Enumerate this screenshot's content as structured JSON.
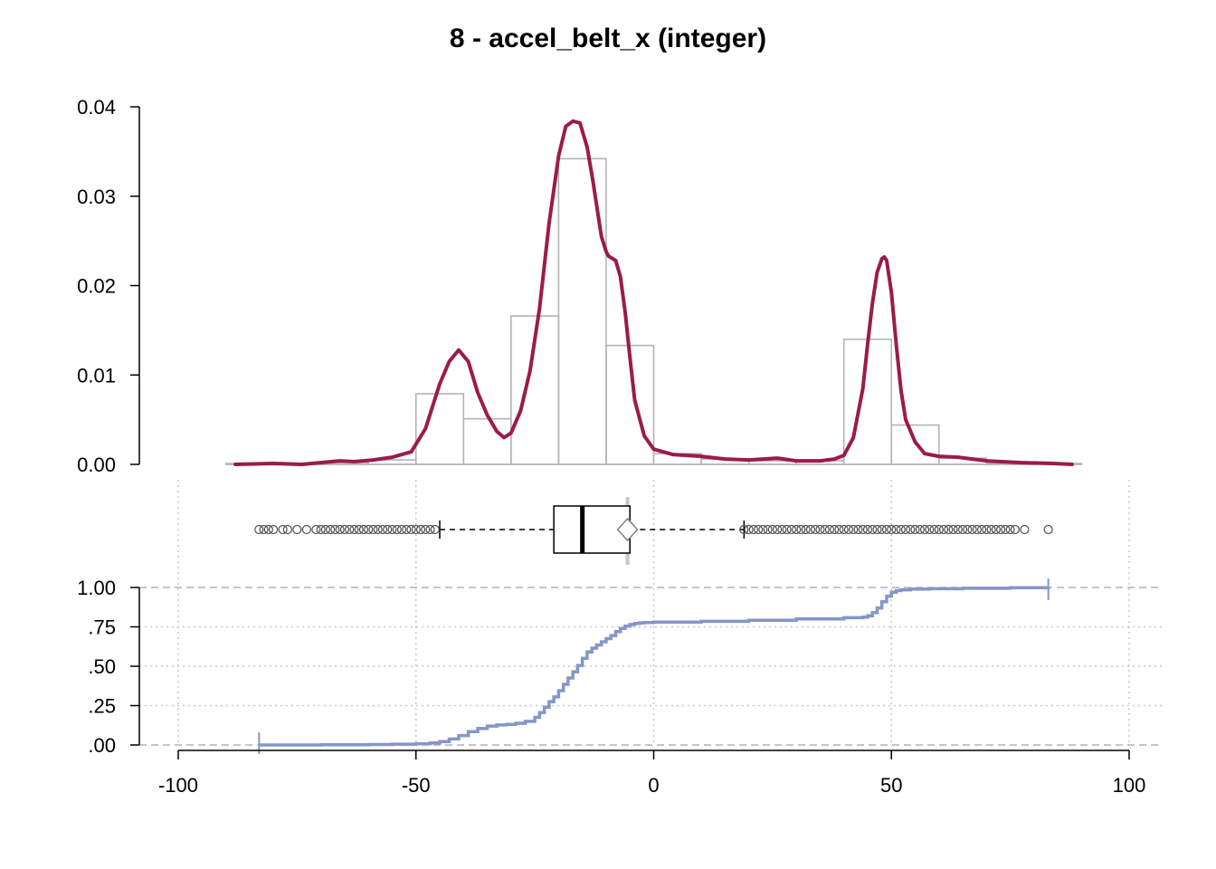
{
  "chart_data": {
    "title": "8 - accel_belt_x (integer)",
    "x_range": [
      -100,
      100
    ],
    "x_ticks": [
      -100,
      -50,
      0,
      50,
      100
    ],
    "x_tick_labels": [
      "-100",
      "-50",
      "0",
      "50",
      "100"
    ],
    "grid": true,
    "colors": {
      "density": "#9B1B4B",
      "histogram": "#B4B4B4",
      "ecdf": "#8596C8",
      "box": "#000000",
      "grid": "#C8C8C8",
      "outliers": "#505050"
    },
    "panels": [
      {
        "type": "histogram_density",
        "ylim": [
          0,
          0.04
        ],
        "y_ticks": [
          0,
          0.01,
          0.02,
          0.03,
          0.04
        ],
        "y_tick_labels": [
          "0.00",
          "0.01",
          "0.02",
          "0.03",
          "0.04"
        ],
        "histogram": {
          "bin_edges": [
            -90,
            -80,
            -70,
            -60,
            -50,
            -40,
            -30,
            -20,
            -10,
            0,
            10,
            20,
            30,
            40,
            50,
            60,
            70,
            80,
            90
          ],
          "density": [
            0.0001,
            0.0001,
            0.0002,
            0.0005,
            0.0079,
            0.0051,
            0.0166,
            0.0342,
            0.0133,
            0.0012,
            0.0006,
            0.0004,
            0.0004,
            0.014,
            0.0044,
            0.0007,
            0.0001,
            0.0001
          ]
        },
        "density_curve": {
          "x": [
            -88,
            -80,
            -74,
            -66,
            -63,
            -59,
            -55,
            -51,
            -48,
            -45,
            -43,
            -41,
            -39,
            -37,
            -35,
            -33,
            -31.5,
            -30,
            -28,
            -26,
            -24,
            -22,
            -20,
            -18.5,
            -17,
            -15.5,
            -14,
            -12.8,
            -12,
            -11,
            -10,
            -9.5,
            -8,
            -7,
            -6,
            -5,
            -4,
            -2,
            0,
            4,
            10,
            15,
            20,
            26,
            30,
            35,
            38,
            40,
            42,
            44,
            45,
            46,
            47,
            48,
            48.5,
            49,
            50,
            51,
            52,
            53,
            55,
            57,
            60,
            64,
            70,
            77,
            84,
            88
          ],
          "y": [
            0.0,
            0.0001,
            0.0,
            0.0004,
            0.0003,
            0.0005,
            0.0008,
            0.0014,
            0.004,
            0.009,
            0.0115,
            0.0128,
            0.0115,
            0.008,
            0.0055,
            0.0037,
            0.003,
            0.0035,
            0.006,
            0.0105,
            0.0175,
            0.027,
            0.0345,
            0.0378,
            0.0384,
            0.0382,
            0.0355,
            0.0318,
            0.029,
            0.0255,
            0.0238,
            0.0233,
            0.0228,
            0.021,
            0.017,
            0.012,
            0.0072,
            0.0032,
            0.0017,
            0.0011,
            0.0009,
            0.0006,
            0.0005,
            0.0007,
            0.0004,
            0.0004,
            0.0006,
            0.001,
            0.003,
            0.0085,
            0.0135,
            0.018,
            0.0215,
            0.023,
            0.0232,
            0.0228,
            0.0192,
            0.0135,
            0.0083,
            0.005,
            0.0025,
            0.0012,
            0.0009,
            0.0008,
            0.0004,
            0.0002,
            0.0001,
            0.0
          ]
        }
      },
      {
        "type": "boxplot",
        "whisker_low": -45,
        "q1": -21,
        "median": -15,
        "q3": -5,
        "whisker_high": 19,
        "mean": -5.5,
        "outliers_low": [
          -83,
          -82,
          -81,
          -80,
          -78,
          -77,
          -75,
          -73,
          -71,
          -70,
          -69,
          -68,
          -67,
          -66,
          -65,
          -64,
          -63,
          -62,
          -61,
          -60,
          -59,
          -58,
          -57,
          -56,
          -55,
          -54,
          -53,
          -52,
          -51,
          -50,
          -49,
          -48,
          -47,
          -46
        ],
        "outliers_high": [
          19,
          20,
          21,
          22,
          23,
          24,
          25,
          26,
          27,
          28,
          29,
          30,
          31,
          32,
          33,
          34,
          35,
          36,
          37,
          38,
          39,
          40,
          41,
          42,
          43,
          44,
          45,
          46,
          47,
          48,
          49,
          50,
          51,
          52,
          53,
          54,
          55,
          56,
          57,
          58,
          59,
          60,
          61,
          62,
          63,
          64,
          65,
          66,
          67,
          68,
          69,
          70,
          71,
          72,
          73,
          74,
          75,
          76,
          78,
          83
        ]
      },
      {
        "type": "ecdf",
        "ylim": [
          0,
          1
        ],
        "y_ticks": [
          0,
          0.25,
          0.5,
          0.75,
          1
        ],
        "y_tick_labels": [
          ".00",
          ".25",
          ".50",
          ".75",
          "1.00"
        ],
        "x_min": -83,
        "x_max": 83,
        "x": [
          -83,
          -70,
          -60,
          -55,
          -50,
          -47,
          -45,
          -43,
          -41,
          -39,
          -37,
          -35,
          -33,
          -31,
          -29,
          -27,
          -25,
          -24,
          -23,
          -22,
          -21,
          -20,
          -19,
          -18,
          -17,
          -16,
          -15,
          -14,
          -13,
          -12,
          -11,
          -10,
          -9,
          -8,
          -7,
          -6,
          -5,
          -4,
          -3,
          -2,
          0,
          10,
          20,
          30,
          40,
          44,
          45,
          46,
          47,
          48,
          49,
          50,
          51,
          52,
          54,
          58,
          65,
          75,
          83
        ],
        "y": [
          0.0,
          0.001,
          0.003,
          0.005,
          0.008,
          0.013,
          0.022,
          0.038,
          0.06,
          0.085,
          0.105,
          0.12,
          0.127,
          0.131,
          0.138,
          0.15,
          0.175,
          0.205,
          0.24,
          0.275,
          0.305,
          0.345,
          0.385,
          0.425,
          0.465,
          0.505,
          0.55,
          0.59,
          0.615,
          0.635,
          0.655,
          0.675,
          0.695,
          0.72,
          0.74,
          0.755,
          0.765,
          0.772,
          0.775,
          0.777,
          0.78,
          0.785,
          0.792,
          0.8,
          0.808,
          0.812,
          0.82,
          0.84,
          0.87,
          0.91,
          0.945,
          0.97,
          0.98,
          0.985,
          0.99,
          0.992,
          0.995,
          0.998,
          1.0
        ]
      }
    ]
  }
}
